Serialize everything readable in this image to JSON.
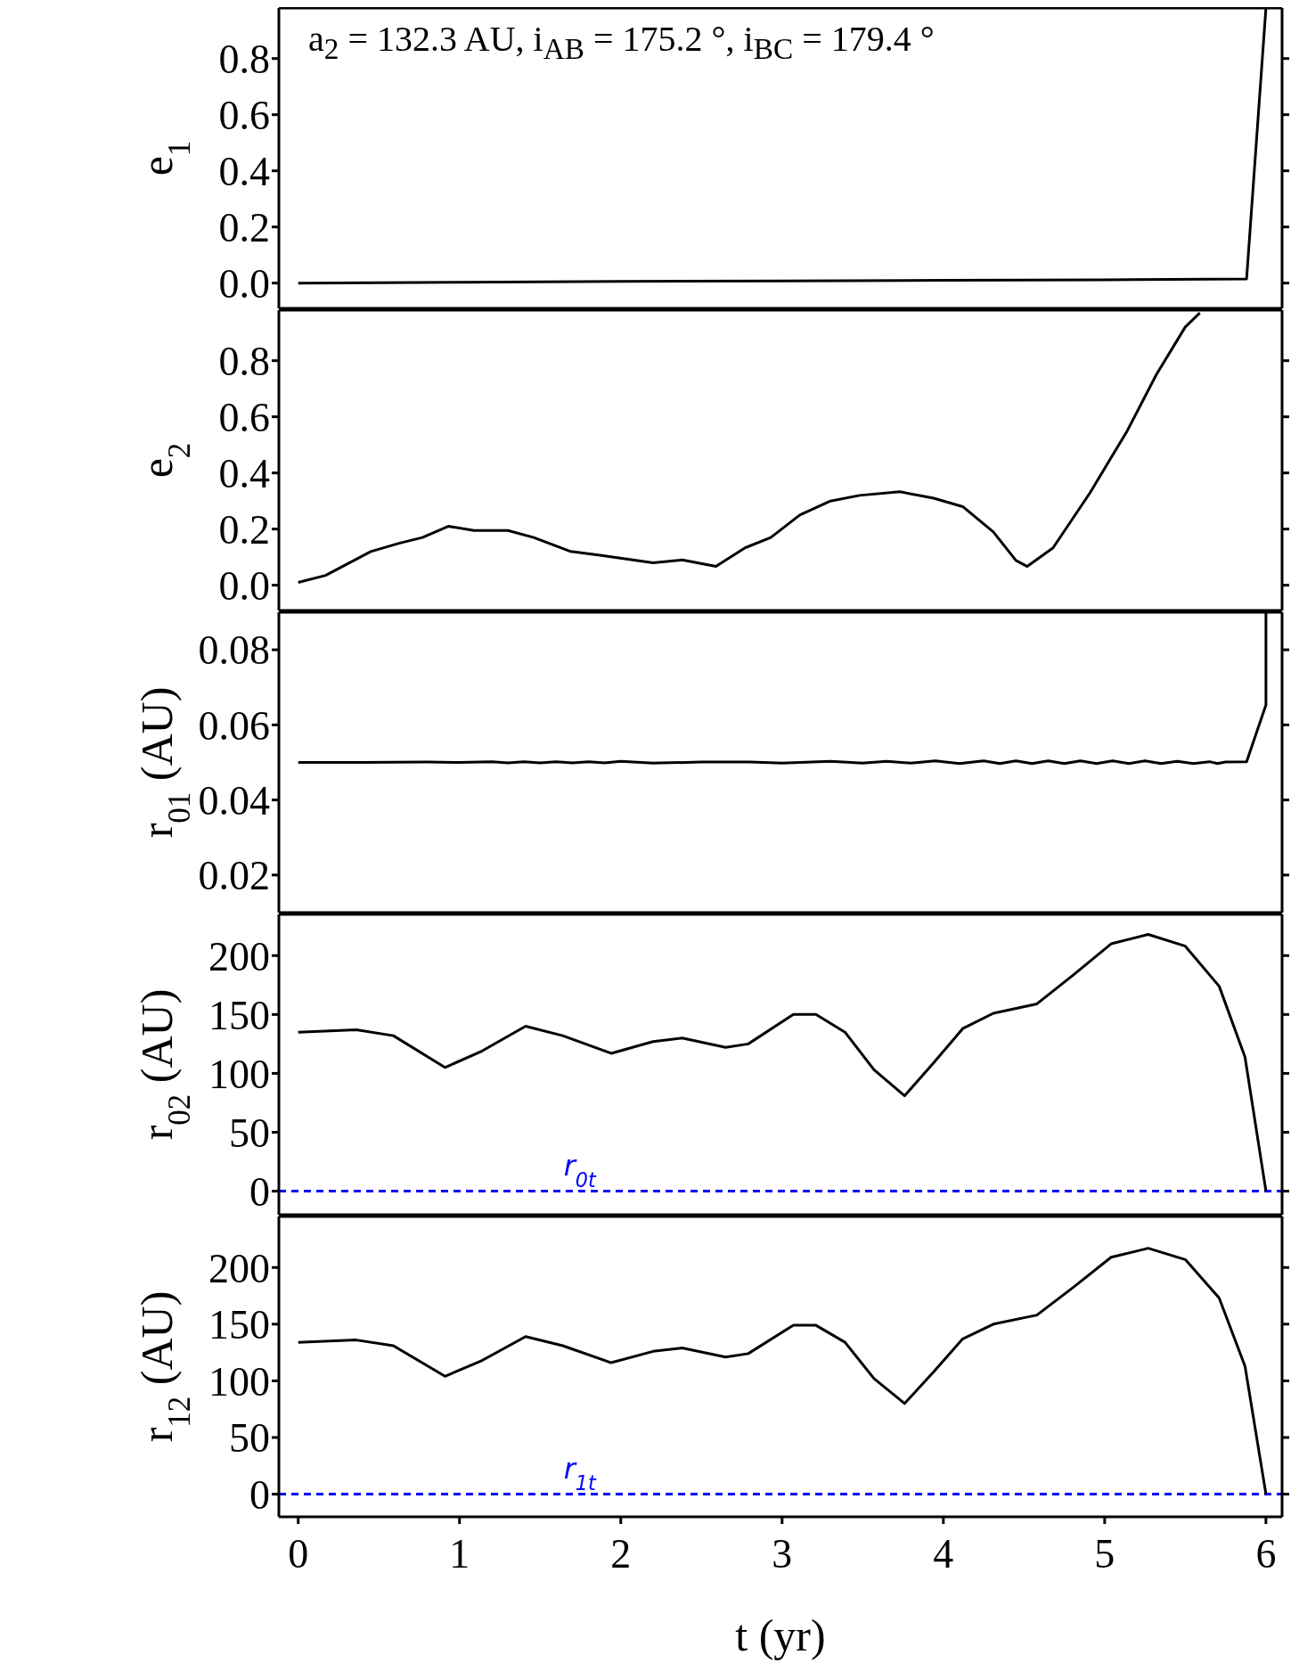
{
  "chart_data": [
    {
      "type": "line",
      "ylabel": "e$_{1}$",
      "xlim": [
        -0.12,
        6.1
      ],
      "xticks": [
        0,
        1,
        2,
        3,
        4,
        5,
        6
      ],
      "ylim": [
        -0.09,
        0.98
      ],
      "yticks": [
        {
          "value": 0,
          "label": "0.0"
        },
        {
          "value": 0.2,
          "label": "0.2"
        },
        {
          "value": 0.4,
          "label": "0.4"
        },
        {
          "value": 0.6,
          "label": "0.6"
        },
        {
          "value": 0.8,
          "label": "0.8"
        }
      ],
      "tick_labels": "y",
      "annotations": [
        "a$_{2}$ = 132.3 AU, i$_{AB}$ = 175.2 °, i$_{BC}$ = 179.4 °"
      ],
      "series": [
        {
          "color": "#000000",
          "x": [
            0,
            1,
            2,
            3,
            4,
            5,
            5.88,
            6.0
          ],
          "values": [
            0,
            0.003,
            0.006,
            0.008,
            0.01,
            0.012,
            0.015,
            0.98
          ]
        }
      ]
    },
    {
      "type": "line",
      "ylabel": "e$_{2}$",
      "xlim": [
        -0.12,
        6.1
      ],
      "xticks": [
        0,
        1,
        2,
        3,
        4,
        5,
        6
      ],
      "ylim": [
        -0.09,
        0.98
      ],
      "yticks": [
        {
          "value": 0,
          "label": "0.0"
        },
        {
          "value": 0.2,
          "label": "0.2"
        },
        {
          "value": 0.4,
          "label": "0.4"
        },
        {
          "value": 0.6,
          "label": "0.6"
        },
        {
          "value": 0.8,
          "label": "0.8"
        }
      ],
      "tick_labels": "y",
      "series": [
        {
          "color": "#000000",
          "x": [
            0,
            0.17,
            0.45,
            0.63,
            0.77,
            0.93,
            1.09,
            1.3,
            1.46,
            1.69,
            1.87,
            2.2,
            2.38,
            2.59,
            2.77,
            2.93,
            3.11,
            3.3,
            3.48,
            3.73,
            3.94,
            4.12,
            4.31,
            4.45,
            4.52,
            4.68,
            4.91,
            5.14,
            5.32,
            5.5,
            5.59
          ],
          "values": [
            0.01,
            0.035,
            0.12,
            0.15,
            0.17,
            0.21,
            0.195,
            0.195,
            0.17,
            0.12,
            0.107,
            0.08,
            0.09,
            0.067,
            0.133,
            0.17,
            0.25,
            0.3,
            0.32,
            0.333,
            0.31,
            0.28,
            0.19,
            0.088,
            0.067,
            0.133,
            0.33,
            0.55,
            0.75,
            0.92,
            0.97
          ]
        }
      ]
    },
    {
      "type": "line",
      "ylabel": "r$_{01}$ (AU)",
      "xlim": [
        -0.12,
        6.1
      ],
      "xticks": [
        0,
        1,
        2,
        3,
        4,
        5,
        6
      ],
      "ylim": [
        0.01,
        0.09
      ],
      "yticks": [
        0.02,
        0.04,
        0.06,
        0.08
      ],
      "tick_labels": "y",
      "series": [
        {
          "color": "#000000",
          "x": [
            0,
            0.4,
            0.8,
            1.0,
            1.2,
            1.3,
            1.4,
            1.5,
            1.6,
            1.7,
            1.8,
            1.9,
            2.0,
            2.2,
            2.5,
            2.8,
            3.0,
            3.3,
            3.5,
            3.65,
            3.8,
            3.95,
            4.1,
            4.25,
            4.35,
            4.45,
            4.55,
            4.65,
            4.75,
            4.85,
            4.95,
            5.05,
            5.15,
            5.25,
            5.35,
            5.45,
            5.55,
            5.65,
            5.7,
            5.75,
            5.88,
            6.0,
            6.0
          ],
          "values": [
            0.05,
            0.05,
            0.0501,
            0.05,
            0.0502,
            0.0499,
            0.0502,
            0.0499,
            0.0502,
            0.0499,
            0.0502,
            0.0499,
            0.0503,
            0.0498,
            0.0501,
            0.0501,
            0.0498,
            0.0503,
            0.0498,
            0.0503,
            0.0498,
            0.0504,
            0.0497,
            0.0504,
            0.0497,
            0.0504,
            0.0497,
            0.0504,
            0.0497,
            0.0504,
            0.0497,
            0.0504,
            0.0497,
            0.0504,
            0.0497,
            0.0503,
            0.0497,
            0.0502,
            0.0497,
            0.0501,
            0.0502,
            0.0653,
            0.09
          ]
        }
      ]
    },
    {
      "type": "line",
      "ylabel": "r$_{02}$ (AU)",
      "xlim": [
        -0.12,
        6.1
      ],
      "xticks": [
        0,
        1,
        2,
        3,
        4,
        5,
        6
      ],
      "ylim": [
        -20,
        235
      ],
      "yticks": [
        0,
        50,
        100,
        150,
        200
      ],
      "tick_labels": "y",
      "ref_lines": [
        {
          "axis": "y",
          "value": 0,
          "label": "r$_{0t}$",
          "color": "#0000ff",
          "line_style": "dashed"
        }
      ],
      "series": [
        {
          "color": "#000000",
          "x": [
            0,
            0.36,
            0.59,
            0.91,
            1.14,
            1.41,
            1.64,
            1.94,
            2.2,
            2.38,
            2.65,
            2.79,
            3.07,
            3.21,
            3.39,
            3.57,
            3.76,
            3.94,
            4.12,
            4.31,
            4.58,
            4.81,
            5.04,
            5.27,
            5.5,
            5.71,
            5.87,
            6.0
          ],
          "values": [
            135,
            137,
            132,
            105,
            119,
            140,
            132,
            117,
            127,
            130,
            122,
            125,
            150,
            150,
            135,
            103,
            81,
            109,
            138,
            151,
            159,
            184,
            210,
            218,
            208,
            174,
            114,
            0
          ]
        }
      ]
    },
    {
      "type": "line",
      "ylabel": "r$_{12}$ (AU)",
      "xlabel": "t (yr)",
      "xlim": [
        -0.12,
        6.1
      ],
      "xticks": [
        0,
        1,
        2,
        3,
        4,
        5,
        6
      ],
      "ylim": [
        -20,
        245
      ],
      "yticks": [
        0,
        50,
        100,
        150,
        200
      ],
      "ref_lines": [
        {
          "axis": "y",
          "value": 0,
          "label": "r$_{1t}$",
          "color": "#0000ff",
          "line_style": "dashed"
        }
      ],
      "series": [
        {
          "color": "#000000",
          "x": [
            0,
            0.36,
            0.59,
            0.91,
            1.14,
            1.41,
            1.64,
            1.94,
            2.2,
            2.38,
            2.65,
            2.79,
            3.07,
            3.21,
            3.39,
            3.57,
            3.76,
            3.94,
            4.12,
            4.31,
            4.58,
            4.81,
            5.04,
            5.27,
            5.5,
            5.71,
            5.87,
            6.0
          ],
          "values": [
            134,
            136,
            131,
            104,
            118,
            139,
            131,
            116,
            126,
            129,
            121,
            124,
            149,
            149,
            134,
            102,
            80,
            108,
            137,
            150,
            158,
            183,
            209,
            217,
            207,
            173,
            113,
            0
          ]
        }
      ]
    }
  ]
}
